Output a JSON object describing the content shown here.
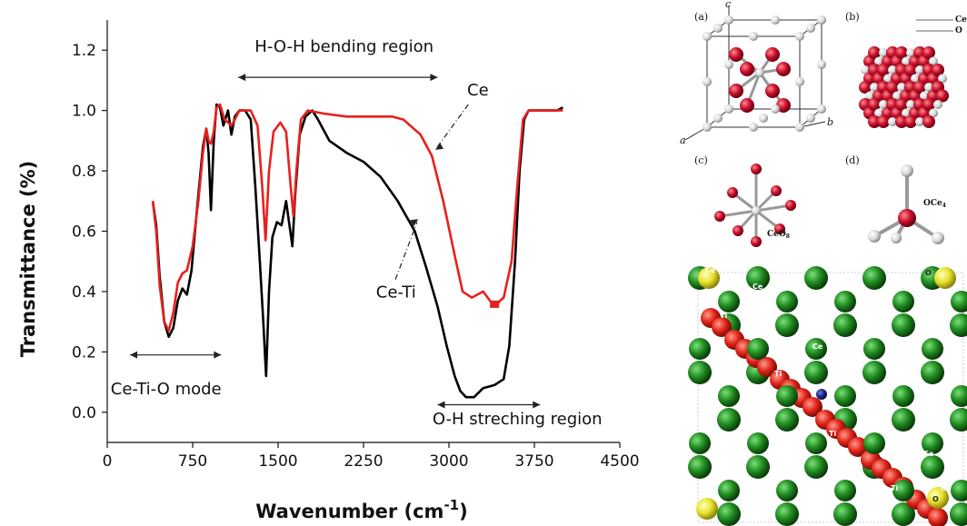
{
  "chart_data": {
    "type": "line",
    "title": "",
    "xlabel": "Wavenumber (cm",
    "xlabel_sup": "-1",
    "xlabel_close": ")",
    "ylabel": "Transmittance (%)",
    "xlim": [
      0,
      4500
    ],
    "ylim": [
      -0.1,
      1.3
    ],
    "xticks": [
      0,
      750,
      1500,
      2250,
      3000,
      3750,
      4500
    ],
    "yticks": [
      0.0,
      0.2,
      0.4,
      0.6,
      0.8,
      1.0,
      1.2
    ],
    "xtick_labels": [
      "0",
      "750",
      "1500",
      "2250",
      "3000",
      "3750",
      "4500"
    ],
    "ytick_labels": [
      "0.0",
      "0.2",
      "0.4",
      "0.6",
      "0.8",
      "1.0",
      "1.2"
    ],
    "series": [
      {
        "name": "Ce-Ti",
        "color": "#000000",
        "points": [
          [
            400,
            0.7
          ],
          [
            430,
            0.62
          ],
          [
            460,
            0.45
          ],
          [
            500,
            0.3
          ],
          [
            540,
            0.25
          ],
          [
            580,
            0.28
          ],
          [
            620,
            0.37
          ],
          [
            660,
            0.41
          ],
          [
            700,
            0.39
          ],
          [
            740,
            0.47
          ],
          [
            790,
            0.68
          ],
          [
            840,
            0.88
          ],
          [
            870,
            0.94
          ],
          [
            890,
            0.86
          ],
          [
            910,
            0.67
          ],
          [
            935,
            0.9
          ],
          [
            960,
            1.02
          ],
          [
            990,
            1.01
          ],
          [
            1020,
            0.95
          ],
          [
            1060,
            1.0
          ],
          [
            1090,
            0.92
          ],
          [
            1120,
            0.98
          ],
          [
            1160,
            1.0
          ],
          [
            1210,
            1.0
          ],
          [
            1260,
            0.97
          ],
          [
            1300,
            0.75
          ],
          [
            1340,
            0.5
          ],
          [
            1370,
            0.3
          ],
          [
            1395,
            0.12
          ],
          [
            1420,
            0.4
          ],
          [
            1450,
            0.58
          ],
          [
            1490,
            0.63
          ],
          [
            1530,
            0.62
          ],
          [
            1570,
            0.7
          ],
          [
            1600,
            0.62
          ],
          [
            1625,
            0.55
          ],
          [
            1650,
            0.72
          ],
          [
            1690,
            0.92
          ],
          [
            1740,
            0.98
          ],
          [
            1800,
            1.0
          ],
          [
            1850,
            0.97
          ],
          [
            1950,
            0.9
          ],
          [
            2100,
            0.86
          ],
          [
            2250,
            0.83
          ],
          [
            2400,
            0.78
          ],
          [
            2550,
            0.7
          ],
          [
            2700,
            0.6
          ],
          [
            2800,
            0.48
          ],
          [
            2900,
            0.35
          ],
          [
            2980,
            0.22
          ],
          [
            3050,
            0.12
          ],
          [
            3100,
            0.07
          ],
          [
            3150,
            0.05
          ],
          [
            3220,
            0.05
          ],
          [
            3300,
            0.08
          ],
          [
            3400,
            0.09
          ],
          [
            3480,
            0.11
          ],
          [
            3530,
            0.22
          ],
          [
            3580,
            0.5
          ],
          [
            3620,
            0.8
          ],
          [
            3660,
            0.97
          ],
          [
            3700,
            1.0
          ],
          [
            3850,
            1.0
          ],
          [
            3950,
            1.0
          ],
          [
            4000,
            1.01
          ]
        ]
      },
      {
        "name": "Ce",
        "color": "#e8201c",
        "points": [
          [
            400,
            0.7
          ],
          [
            430,
            0.6
          ],
          [
            460,
            0.42
          ],
          [
            500,
            0.3
          ],
          [
            540,
            0.27
          ],
          [
            580,
            0.33
          ],
          [
            620,
            0.43
          ],
          [
            660,
            0.46
          ],
          [
            700,
            0.47
          ],
          [
            750,
            0.55
          ],
          [
            800,
            0.7
          ],
          [
            840,
            0.86
          ],
          [
            870,
            0.94
          ],
          [
            890,
            0.9
          ],
          [
            910,
            0.89
          ],
          [
            935,
            0.93
          ],
          [
            960,
            1.01
          ],
          [
            990,
            1.02
          ],
          [
            1030,
            0.97
          ],
          [
            1060,
            0.96
          ],
          [
            1090,
            0.95
          ],
          [
            1120,
            0.97
          ],
          [
            1160,
            1.0
          ],
          [
            1210,
            1.0
          ],
          [
            1260,
            1.0
          ],
          [
            1320,
            0.95
          ],
          [
            1360,
            0.75
          ],
          [
            1390,
            0.57
          ],
          [
            1420,
            0.8
          ],
          [
            1460,
            0.93
          ],
          [
            1520,
            0.96
          ],
          [
            1570,
            0.93
          ],
          [
            1610,
            0.75
          ],
          [
            1635,
            0.65
          ],
          [
            1660,
            0.8
          ],
          [
            1700,
            0.97
          ],
          [
            1760,
            1.0
          ],
          [
            1900,
            0.99
          ],
          [
            2100,
            0.98
          ],
          [
            2300,
            0.98
          ],
          [
            2500,
            0.98
          ],
          [
            2600,
            0.97
          ],
          [
            2750,
            0.92
          ],
          [
            2850,
            0.85
          ],
          [
            2950,
            0.7
          ],
          [
            3050,
            0.52
          ],
          [
            3120,
            0.4
          ],
          [
            3200,
            0.38
          ],
          [
            3300,
            0.4
          ],
          [
            3360,
            0.37
          ],
          [
            3400,
            0.35
          ],
          [
            3450,
            0.37
          ],
          [
            3480,
            0.38
          ],
          [
            3550,
            0.5
          ],
          [
            3600,
            0.75
          ],
          [
            3650,
            0.97
          ],
          [
            3700,
            1.0
          ],
          [
            3850,
            1.0
          ],
          [
            4000,
            1.0
          ]
        ]
      }
    ],
    "annotations": [
      {
        "text": "H-O-H bending region",
        "color": "#111111",
        "arrow_x": [
          1150,
          2900
        ],
        "arrow_y": 1.11,
        "label_x": 2080,
        "label_y": 1.195
      },
      {
        "text": "Ce-Ti-O mode",
        "color": "#e8357a",
        "arrow_x": [
          200,
          1000
        ],
        "arrow_y": 0.19,
        "label_x": 30,
        "label_y": 0.06
      },
      {
        "text": "O-H streching region",
        "color": "#2a2aa8",
        "arrow_x": [
          2900,
          3800
        ],
        "arrow_y": 0.025,
        "label_x": 3600,
        "label_y": -0.04
      },
      {
        "text": "Ce",
        "color": "#111111",
        "label_x": 3160,
        "label_y": 1.05
      },
      {
        "text": "Ce-Ti",
        "color": "#111111",
        "label_x": 2360,
        "label_y": 0.38
      }
    ]
  },
  "structures": {
    "panel_labels": [
      "(a)",
      "(b)",
      "(c)",
      "(d)"
    ],
    "axis_labels": {
      "a": "a",
      "b": "b",
      "c": "c"
    },
    "legend_b": [
      "Ce",
      "O"
    ],
    "label_c": "CeO",
    "label_c_sub": "8",
    "label_d": "OCe",
    "label_d_sub": "4",
    "bottom_atom_labels": {
      "ce": "Ce",
      "ti": "Ti",
      "o": "O"
    },
    "colors": {
      "oxygen_red": "#c8102e",
      "cerium_white": "#e6e6e6",
      "ce_green": "#1f8a1f",
      "ti_red": "#e0251a",
      "o_yellow": "#e8e22a",
      "dopant_blue": "#1a237e"
    }
  }
}
